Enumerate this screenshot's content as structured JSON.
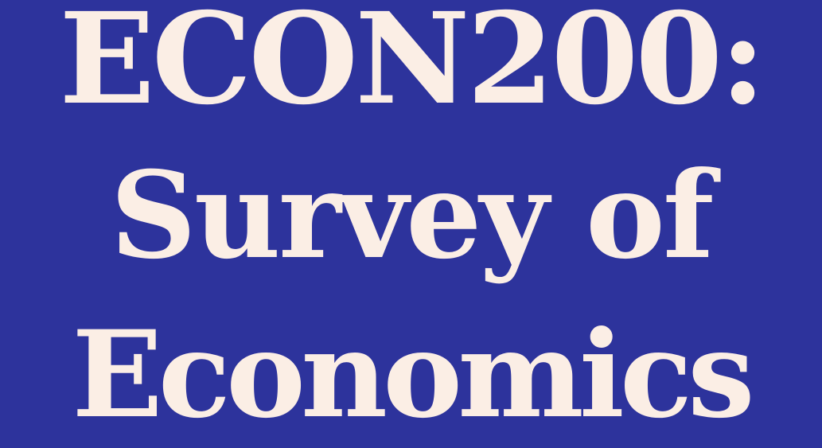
{
  "colors": {
    "background": "#2d339c",
    "text": "#fbeee5"
  },
  "title": {
    "line1": "ECON200:",
    "line2": "Survey of",
    "line3": "Economics"
  }
}
